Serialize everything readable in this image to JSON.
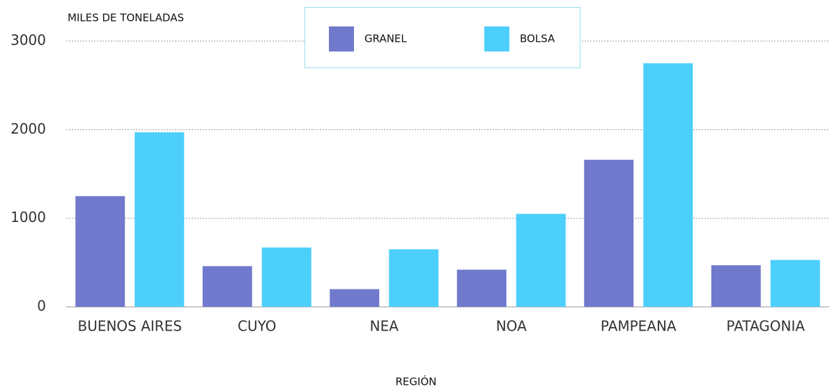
{
  "chart_data": {
    "type": "bar",
    "y_axis_label": "MILES DE TONELADAS",
    "x_axis_label": "REGIÓN",
    "categories": [
      "BUENOS AIRES",
      "CUYO",
      "NEA",
      "NOA",
      "PAMPEANA",
      "PATAGONIA"
    ],
    "series": [
      {
        "name": "GRANEL",
        "color": "#7079cc",
        "values": [
          1250,
          460,
          200,
          420,
          1660,
          470
        ]
      },
      {
        "name": "BOLSA",
        "color": "#4dcffc",
        "values": [
          1970,
          670,
          650,
          1050,
          2750,
          530
        ]
      }
    ],
    "ylim": [
      0,
      3000
    ],
    "yticks": [
      0,
      1000,
      2000,
      3000
    ],
    "grid": true,
    "legend": "top"
  }
}
